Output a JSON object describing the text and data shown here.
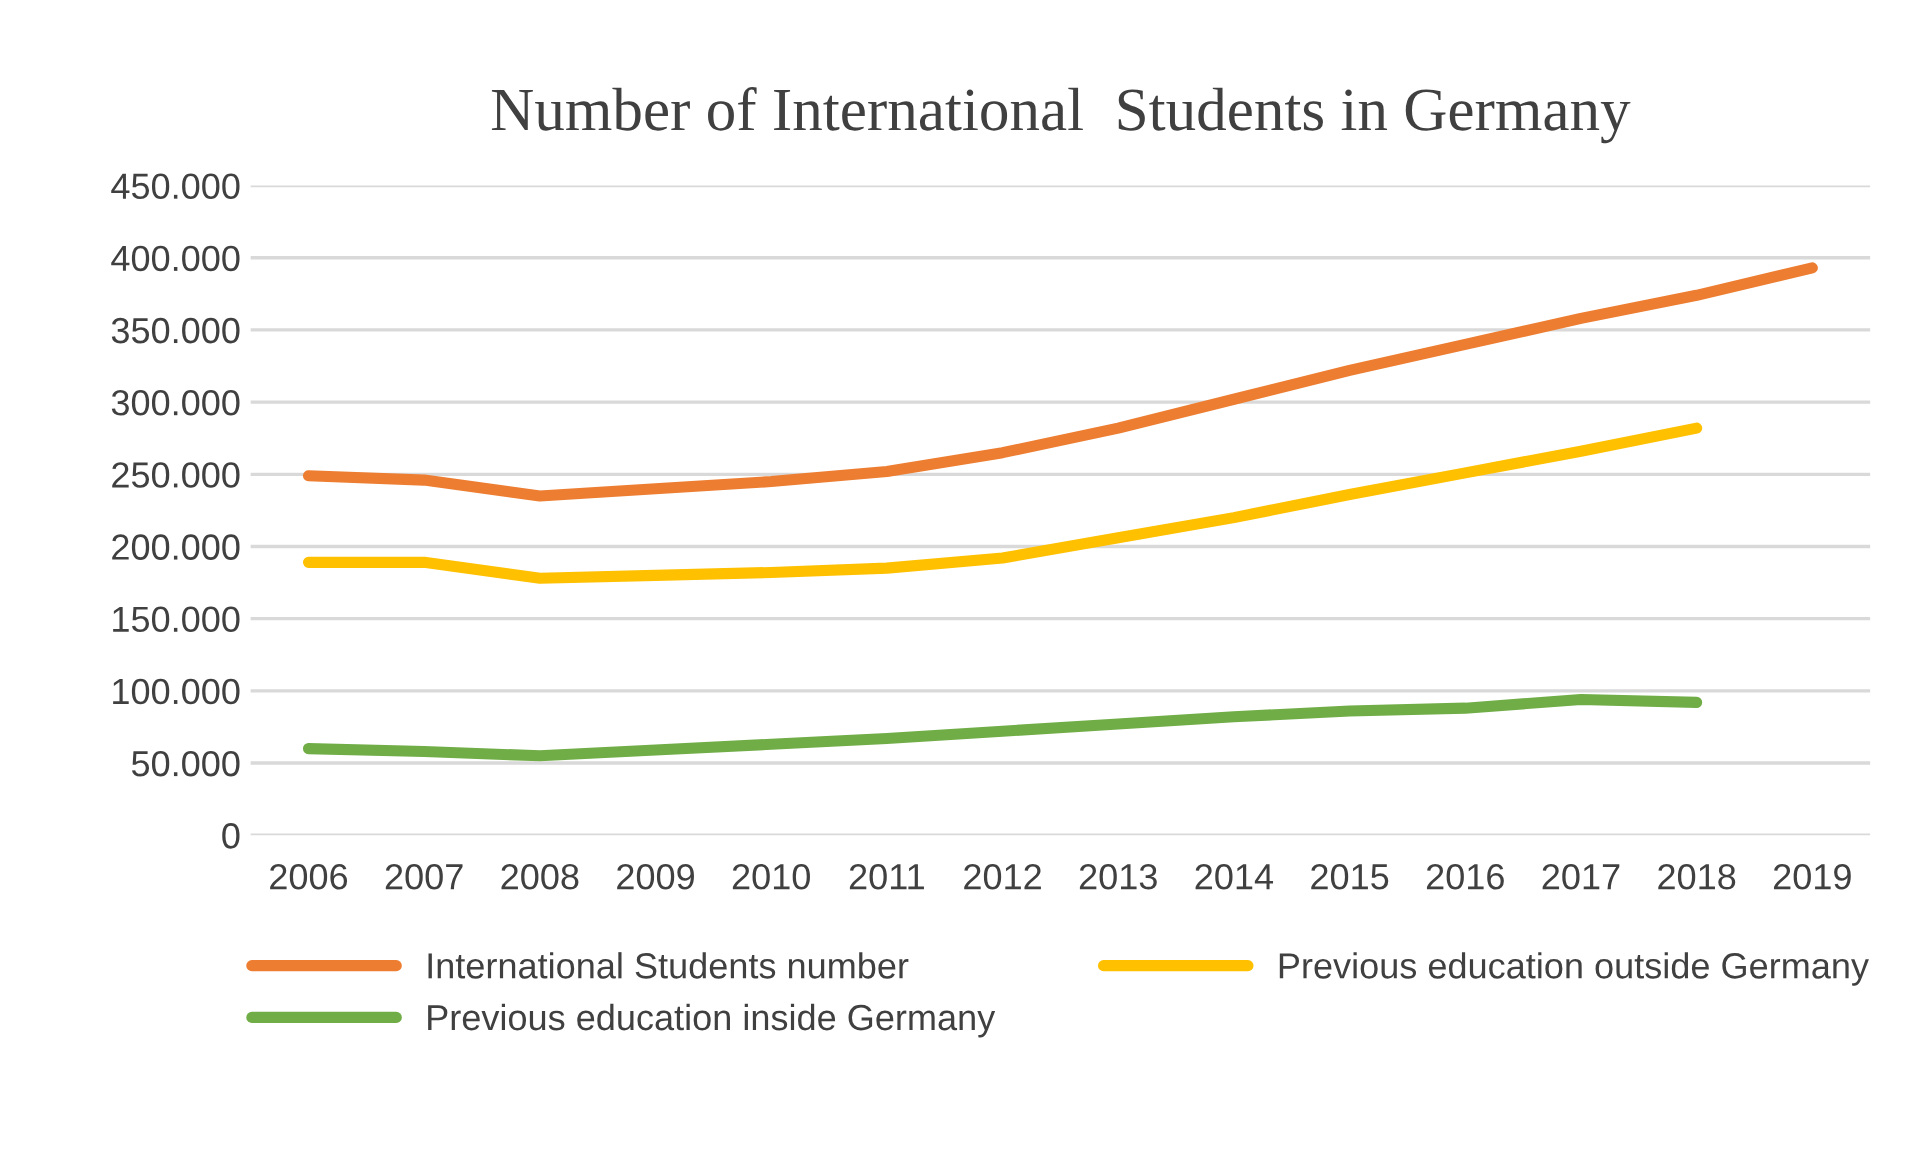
{
  "chart_data": {
    "type": "line",
    "title": "Number of International  Students in Germany",
    "categories": [
      "2006",
      "2007",
      "2008",
      "2009",
      "2010",
      "2011",
      "2012",
      "2013",
      "2014",
      "2015",
      "2016",
      "2017",
      "2018",
      "2019"
    ],
    "series": [
      {
        "name": "International Students number",
        "color": "#ed7d31",
        "values": [
          249000,
          246000,
          235000,
          240000,
          245000,
          252000,
          265000,
          282000,
          302000,
          322000,
          340000,
          358000,
          374000,
          393000
        ]
      },
      {
        "name": "Previous education outside Germany",
        "color": "#ffc000",
        "values": [
          189000,
          189000,
          178000,
          180000,
          182000,
          185000,
          192000,
          206000,
          220000,
          236000,
          251000,
          266000,
          282000,
          null
        ]
      },
      {
        "name": "Previous education inside Germany",
        "color": "#70ad47",
        "values": [
          60000,
          58000,
          55000,
          59000,
          63000,
          67000,
          72000,
          77000,
          82000,
          86000,
          88000,
          94000,
          92000,
          null
        ]
      }
    ],
    "ylim": [
      0,
      450000
    ],
    "yticks": [
      0,
      {
        "value": 50000,
        "label": "50.000"
      },
      {
        "value": 100000,
        "label": "100.000"
      },
      {
        "value": 150000,
        "label": "150.000"
      },
      {
        "value": 200000,
        "label": "200.000"
      },
      {
        "value": 250000,
        "label": "250.000"
      },
      {
        "value": 300000,
        "label": "300.000"
      },
      {
        "value": 350000,
        "label": "350.000"
      },
      {
        "value": 400000,
        "label": "400.000"
      },
      {
        "value": 450000,
        "label": "450.000"
      }
    ],
    "grid": "y",
    "legend": "bottom",
    "marker": "none",
    "line_style": "solid"
  }
}
